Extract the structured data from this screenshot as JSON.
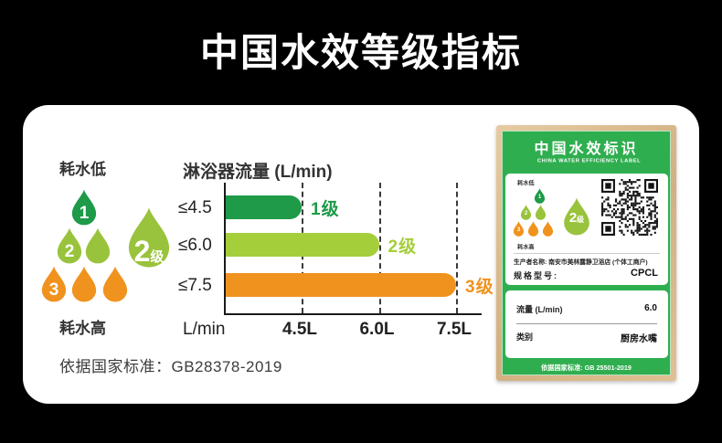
{
  "page": {
    "title": "中国水效等级指标",
    "background": "#000000",
    "card_background": "#ffffff"
  },
  "colors": {
    "grade1": "#1E9A48",
    "grade2": "#99C33C",
    "grade3": "#F0921E",
    "label_green": "#2FAE4F",
    "frame_wood": "#D9BA8C"
  },
  "legend": {
    "low_label": "耗水低",
    "high_label": "耗水高",
    "drop_numbers": [
      "1",
      "2",
      "3"
    ],
    "big_drop_number": "2",
    "big_drop_suffix": "级"
  },
  "chart_data": {
    "type": "bar",
    "title": "淋浴器流量 (L/min)",
    "categories": [
      "≤4.5",
      "≤6.0",
      "≤7.5"
    ],
    "values": [
      4.5,
      6.0,
      7.5
    ],
    "bar_labels": [
      "1级",
      "2级",
      "3级"
    ],
    "bar_colors": [
      "#1E9A48",
      "#A5CE3B",
      "#F0921E"
    ],
    "xlabel": "L/min",
    "x_ticks": [
      "4.5L",
      "6.0L",
      "7.5L"
    ],
    "x_tick_values": [
      4.5,
      6.0,
      7.5
    ],
    "xlim": [
      3.0,
      8.0
    ],
    "grid": "vertical-dashed"
  },
  "standard_note": "依据国家标准：GB28378-2019",
  "efficiency_label": {
    "title": "中国水效标识",
    "subtitle": "CHINA WATER EFFICIENCY LABEL",
    "low_label": "耗水低",
    "high_label": "耗水高",
    "drop_numbers": [
      "1",
      "2",
      "3"
    ],
    "big_drop_number": "2",
    "big_drop_suffix": "级",
    "producer_label": "生产者名称:",
    "producer_value": "南安市美林露静卫浴店 (个体工商户)",
    "model_label": "规格型号:",
    "model_value": "CPCL",
    "flow_label": "流量 (L/min)",
    "flow_value": "6.0",
    "category_label": "类别",
    "category_value": "厨房水嘴",
    "footer": "依据国家标准: GB 25501-2019"
  }
}
